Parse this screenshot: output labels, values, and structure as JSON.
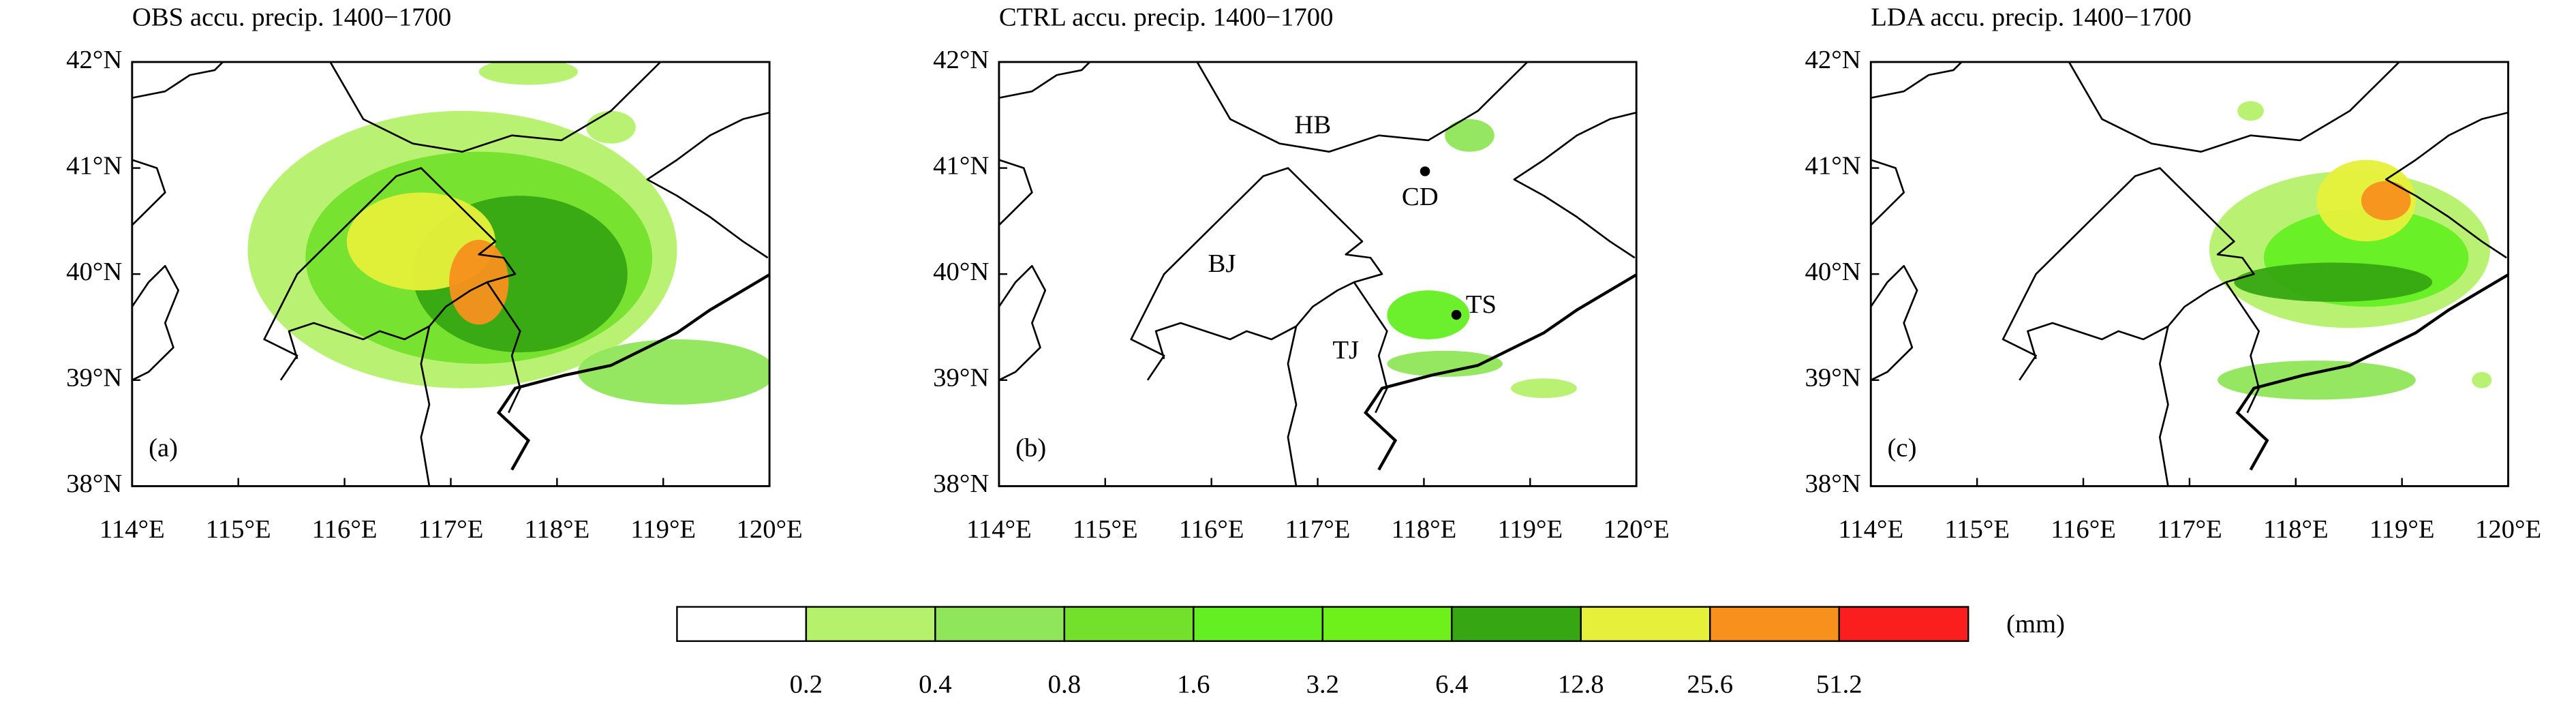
{
  "panels": [
    {
      "title": "OBS accu. precip. 1400−1700",
      "label": "(a)"
    },
    {
      "title": "CTRL accu. precip. 1400−1700",
      "label": "(b)",
      "places": [
        "HB",
        "CD",
        "BJ",
        "TS",
        "TJ"
      ]
    },
    {
      "title": "LDA accu. precip. 1400−1700",
      "label": "(c)"
    }
  ],
  "lat_ticks": [
    "42°N",
    "41°N",
    "40°N",
    "39°N",
    "38°N"
  ],
  "lon_ticks": [
    "114°E",
    "115°E",
    "116°E",
    "117°E",
    "118°E",
    "119°E",
    "120°E"
  ],
  "colorbar": {
    "levels": [
      0.2,
      0.4,
      0.8,
      1.6,
      3.2,
      6.4,
      12.8,
      25.6,
      51.2
    ],
    "colors": [
      "#ffffff",
      "#b5f16b",
      "#8fe65a",
      "#73e02c",
      "#64ef22",
      "#6ef01a",
      "#36a712",
      "#e6f03a",
      "#f7901c",
      "#fa1e1e"
    ],
    "unit": "(mm)"
  }
}
